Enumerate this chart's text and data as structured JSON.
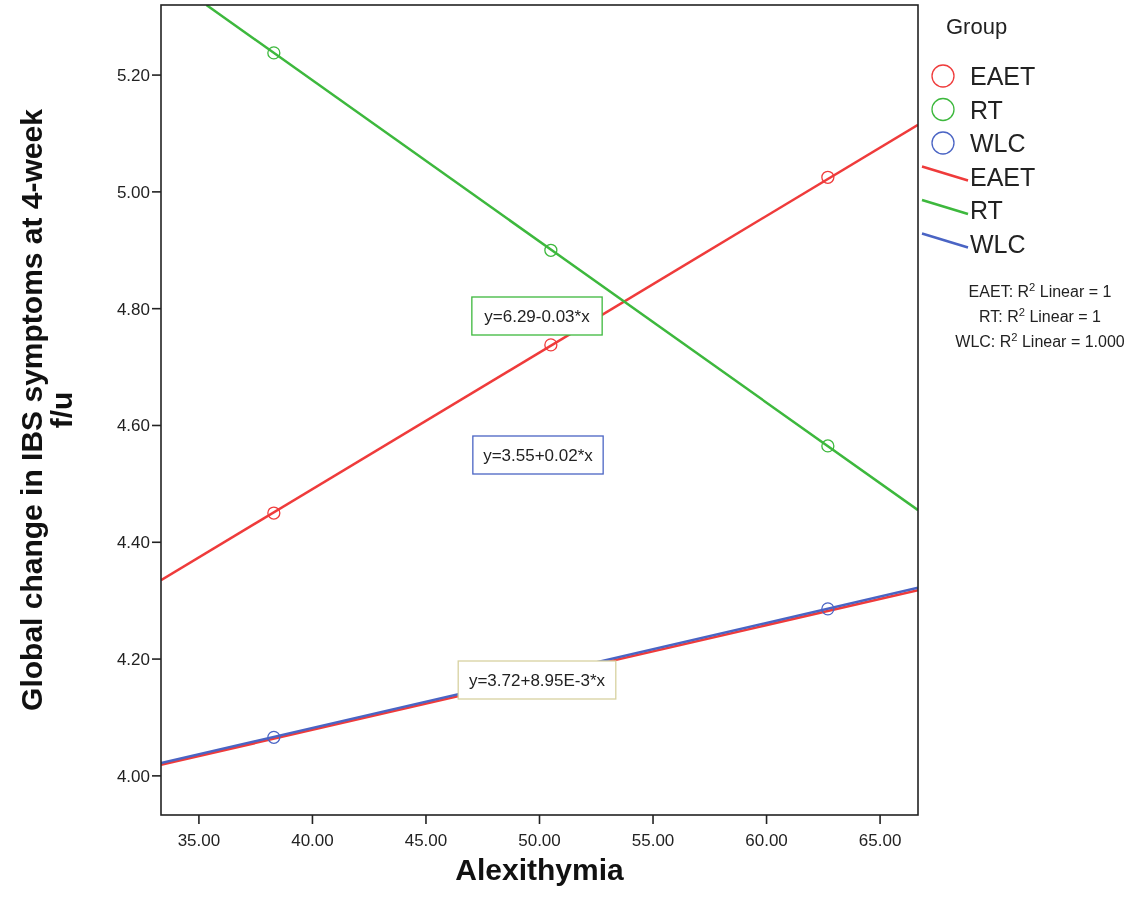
{
  "chart_data": {
    "type": "scatter",
    "xlabel": "Alexithymia",
    "ylabel": "Global change in IBS symptoms at 4-week f/u",
    "legend_title": "Group",
    "legend": "right",
    "xlim": [
      33.33,
      66.67
    ],
    "xticks": [
      {
        "value": 35,
        "label": "35.00"
      },
      {
        "value": 40,
        "label": "40.00"
      },
      {
        "value": 45,
        "label": "45.00"
      },
      {
        "value": 50,
        "label": "50.00"
      },
      {
        "value": 55,
        "label": "55.00"
      },
      {
        "value": 60,
        "label": "60.00"
      },
      {
        "value": 65,
        "label": "65.00"
      }
    ],
    "ylim": [
      3.933,
      5.32
    ],
    "yticks": [
      {
        "value": 4,
        "label": "4.00"
      },
      {
        "value": 4.2,
        "label": "4.20"
      },
      {
        "value": 4.4,
        "label": "4.40"
      },
      {
        "value": 4.6,
        "label": "4.60"
      },
      {
        "value": 4.8,
        "label": "4.80"
      },
      {
        "value": 5,
        "label": "5.00"
      },
      {
        "value": 5.2,
        "label": "5.20"
      }
    ],
    "x": [
      38.3,
      50.5,
      62.7
    ],
    "series": [
      {
        "name": "EAET",
        "marker": "circle",
        "color": "#ef3b3b",
        "values": [
          4.45,
          4.738,
          5.025
        ]
      },
      {
        "name": "RT",
        "marker": "circle",
        "color": "#3db83d",
        "values": [
          5.238,
          4.9,
          4.565
        ]
      },
      {
        "name": "WLC",
        "marker": "circle",
        "color": "#4a64c4",
        "values": [
          4.066,
          null,
          4.286
        ]
      },
      {
        "type": "line",
        "color": "#ef3b3b",
        "x": [
          33.33,
          66.67
        ],
        "values": [
          4.019,
          4.318
        ]
      },
      {
        "name": "EAET",
        "type": "line",
        "color": "#ef3b3b",
        "x": [
          33.33,
          66.67
        ],
        "values": [
          4.335,
          5.115
        ]
      },
      {
        "name": "RT",
        "type": "line",
        "color": "#3db83d",
        "x": [
          35.33,
          66.67
        ],
        "values": [
          5.32,
          4.455
        ]
      },
      {
        "name": "WLC",
        "type": "line",
        "color": "#4a64c4",
        "x": [
          33.33,
          66.67
        ],
        "values": [
          4.022,
          4.322
        ]
      }
    ],
    "annotations": [
      "y=6.29-0.03*x",
      "y=3.55+0.02*x",
      "y=3.72+8.95E-3*x",
      "EAET: R$^{2}$ Linear = 1",
      "RT: R$^{2}$ Linear = 1",
      "WLC: R$^{2}$ Linear = 1.000"
    ]
  }
}
